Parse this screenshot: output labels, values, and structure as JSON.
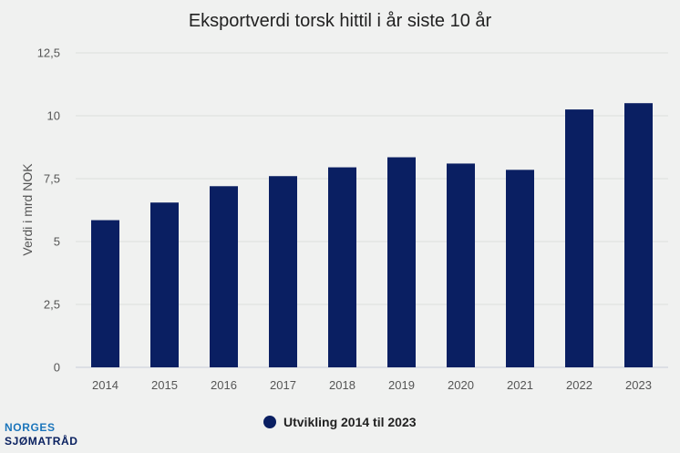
{
  "chart_data": {
    "type": "bar",
    "title": "Eksportverdi torsk hittil i år siste 10 år",
    "xlabel": "",
    "ylabel": "Verdi i mrd NOK",
    "categories": [
      "2014",
      "2015",
      "2016",
      "2017",
      "2018",
      "2019",
      "2020",
      "2021",
      "2022",
      "2023"
    ],
    "series": [
      {
        "name": "Utvikling 2014 til 2023",
        "values": [
          5.85,
          6.55,
          7.2,
          7.6,
          7.95,
          8.35,
          8.1,
          7.85,
          10.25,
          10.5
        ],
        "color": "#0a1f62"
      }
    ],
    "ylim": [
      0,
      12.5
    ],
    "yticks": [
      "0",
      "2,5",
      "5",
      "7,5",
      "10",
      "12,5"
    ],
    "grid": true,
    "legend_position": "bottom-center"
  },
  "logo": {
    "line1": "NORGES",
    "line2": "SJØMATRÅD",
    "color1": "#1b75bb",
    "color2": "#0a2160"
  }
}
